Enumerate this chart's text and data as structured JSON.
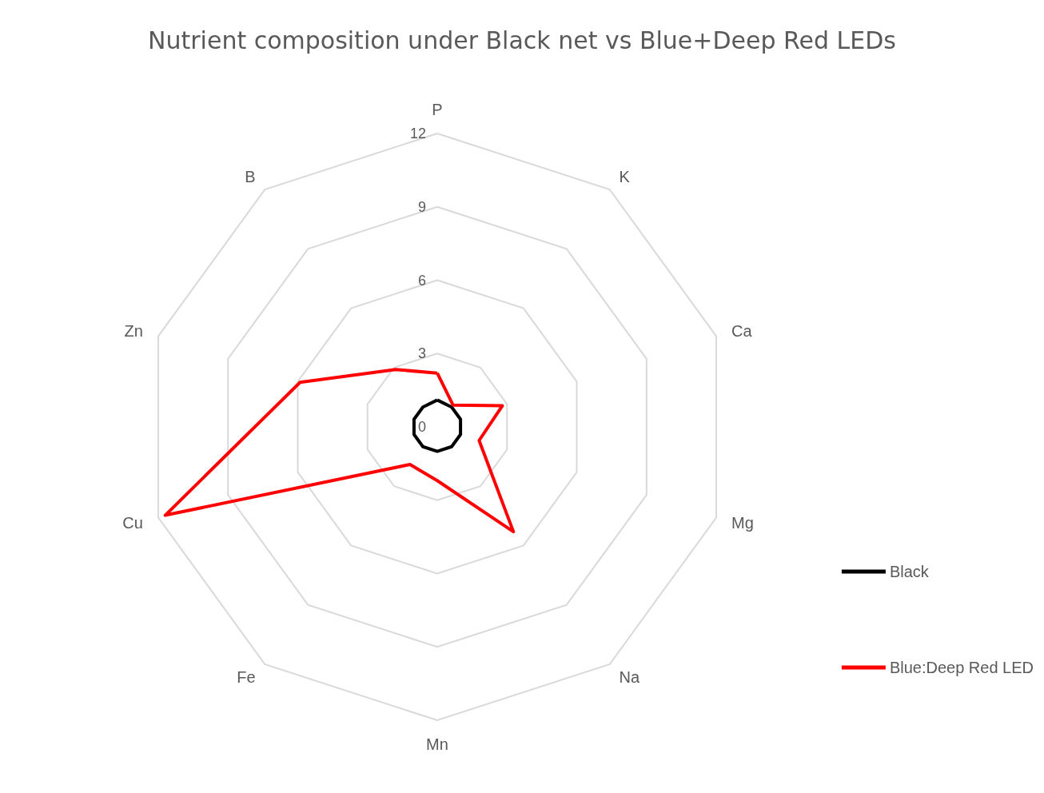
{
  "chart_data": {
    "type": "radar",
    "title": "Nutrient composition under Black net vs Blue+Deep Red LEDs",
    "categories": [
      "P",
      "K",
      "Ca",
      "Mg",
      "Na",
      "Mn",
      "Fe",
      "Cu",
      "Zn",
      "B"
    ],
    "ylim": [
      0,
      12
    ],
    "yticks": [
      0,
      3,
      6,
      9,
      12
    ],
    "grid": true,
    "legend": "right",
    "marker": "none",
    "line_style": "solid",
    "series": [
      {
        "name": "Black",
        "color": "#000000",
        "values": [
          1.1,
          1.0,
          1.0,
          1.0,
          1.0,
          1.0,
          1.0,
          1.0,
          1.0,
          1.0
        ]
      },
      {
        "name": "Blue:Deep Red LED",
        "color": "#ff0000",
        "values": [
          2.2,
          1.1,
          2.8,
          1.8,
          5.3,
          2.2,
          1.9,
          11.7,
          5.9,
          2.9
        ]
      }
    ]
  }
}
